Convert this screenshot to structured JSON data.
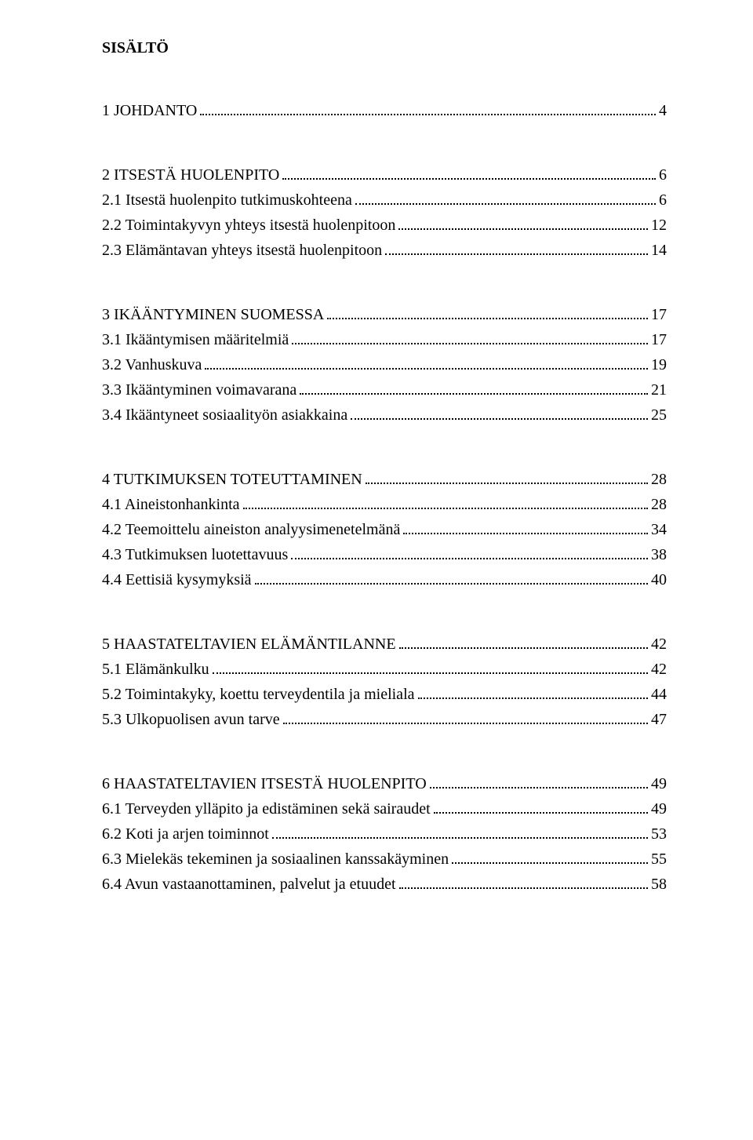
{
  "title": "SISÄLTÖ",
  "font": {
    "family": "Times New Roman",
    "title_size_pt": 20,
    "row_size_pt": 20,
    "color": "#000000",
    "background": "#ffffff",
    "dot_color": "#000000"
  },
  "sections": [
    {
      "rows": [
        {
          "label": "1 JOHDANTO",
          "page": "4"
        }
      ]
    },
    {
      "rows": [
        {
          "label": "2 ITSESTÄ HUOLENPITO",
          "page": "6"
        },
        {
          "label": "2.1 Itsestä huolenpito tutkimuskohteena",
          "page": "6"
        },
        {
          "label": "2.2 Toimintakyvyn yhteys itsestä huolenpitoon",
          "page": "12"
        },
        {
          "label": "2.3 Elämäntavan yhteys itsestä huolenpitoon",
          "page": "14"
        }
      ]
    },
    {
      "rows": [
        {
          "label": "3 IKÄÄNTYMINEN SUOMESSA",
          "page": "17"
        },
        {
          "label": "3.1 Ikääntymisen määritelmiä",
          "page": "17"
        },
        {
          "label": "3.2 Vanhuskuva",
          "page": "19"
        },
        {
          "label": "3.3 Ikääntyminen voimavarana",
          "page": "21"
        },
        {
          "label": "3.4 Ikääntyneet sosiaalityön asiakkaina",
          "page": "25"
        }
      ]
    },
    {
      "rows": [
        {
          "label": "4 TUTKIMUKSEN TOTEUTTAMINEN",
          "page": "28"
        },
        {
          "label": "4.1 Aineistonhankinta",
          "page": "28"
        },
        {
          "label": "4.2 Teemoittelu aineiston analyysimenetelmänä",
          "page": "34"
        },
        {
          "label": "4.3 Tutkimuksen luotettavuus",
          "page": "38"
        },
        {
          "label": "4.4 Eettisiä kysymyksiä",
          "page": "40"
        }
      ]
    },
    {
      "rows": [
        {
          "label": "5 HAASTATELTAVIEN ELÄMÄNTILANNE",
          "page": "42"
        },
        {
          "label": "5.1 Elämänkulku",
          "page": "42"
        },
        {
          "label": "5.2 Toimintakyky, koettu terveydentila ja mieliala",
          "page": "44"
        },
        {
          "label": "5.3 Ulkopuolisen avun tarve",
          "page": "47"
        }
      ]
    },
    {
      "rows": [
        {
          "label": "6 HAASTATELTAVIEN ITSESTÄ HUOLENPITO",
          "page": "49"
        },
        {
          "label": "6.1 Terveyden ylläpito ja edistäminen sekä sairaudet",
          "page": "49"
        },
        {
          "label": "6.2 Koti ja arjen toiminnot",
          "page": "53"
        },
        {
          "label": "6.3 Mielekäs tekeminen ja sosiaalinen kanssakäyminen",
          "page": "55"
        },
        {
          "label": "6.4 Avun vastaanottaminen, palvelut ja etuudet",
          "page": "58"
        }
      ]
    }
  ]
}
